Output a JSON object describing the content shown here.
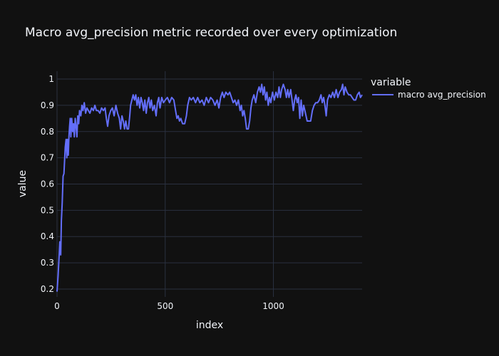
{
  "chart_data": {
    "type": "line",
    "title": "Macro avg_precision metric recorded over every optimization",
    "xlabel": "index",
    "ylabel": "value",
    "xlim": [
      0,
      1410
    ],
    "ylim": [
      0.17,
      1.03
    ],
    "x_ticks": [
      0,
      500,
      1000
    ],
    "y_ticks": [
      0.2,
      0.3,
      0.4,
      0.5,
      0.6,
      0.7,
      0.8,
      0.9,
      1
    ],
    "grid": true,
    "legend": {
      "title": "variable",
      "placement": "top-right-outside"
    },
    "colors": {
      "background": "#111111",
      "grid": "#2a3140",
      "text": "#f2f5fa",
      "line": "#636efa"
    },
    "series": [
      {
        "name": "macro avg_precision",
        "points": [
          [
            0,
            0.19
          ],
          [
            5,
            0.25
          ],
          [
            10,
            0.33
          ],
          [
            13,
            0.38
          ],
          [
            17,
            0.33
          ],
          [
            20,
            0.46
          ],
          [
            24,
            0.53
          ],
          [
            28,
            0.63
          ],
          [
            32,
            0.64
          ],
          [
            35,
            0.69
          ],
          [
            38,
            0.74
          ],
          [
            42,
            0.77
          ],
          [
            45,
            0.7
          ],
          [
            48,
            0.77
          ],
          [
            52,
            0.71
          ],
          [
            55,
            0.78
          ],
          [
            58,
            0.82
          ],
          [
            61,
            0.85
          ],
          [
            64,
            0.78
          ],
          [
            68,
            0.85
          ],
          [
            72,
            0.8
          ],
          [
            76,
            0.83
          ],
          [
            80,
            0.78
          ],
          [
            84,
            0.85
          ],
          [
            88,
            0.82
          ],
          [
            92,
            0.78
          ],
          [
            96,
            0.86
          ],
          [
            100,
            0.83
          ],
          [
            104,
            0.88
          ],
          [
            110,
            0.86
          ],
          [
            115,
            0.9
          ],
          [
            120,
            0.88
          ],
          [
            126,
            0.91
          ],
          [
            132,
            0.87
          ],
          [
            138,
            0.89
          ],
          [
            145,
            0.88
          ],
          [
            152,
            0.87
          ],
          [
            160,
            0.89
          ],
          [
            168,
            0.88
          ],
          [
            175,
            0.9
          ],
          [
            182,
            0.88
          ],
          [
            190,
            0.88
          ],
          [
            198,
            0.87
          ],
          [
            206,
            0.89
          ],
          [
            214,
            0.88
          ],
          [
            222,
            0.89
          ],
          [
            228,
            0.85
          ],
          [
            234,
            0.82
          ],
          [
            240,
            0.86
          ],
          [
            248,
            0.88
          ],
          [
            256,
            0.89
          ],
          [
            264,
            0.86
          ],
          [
            272,
            0.9
          ],
          [
            280,
            0.87
          ],
          [
            288,
            0.85
          ],
          [
            294,
            0.81
          ],
          [
            300,
            0.86
          ],
          [
            306,
            0.84
          ],
          [
            312,
            0.81
          ],
          [
            318,
            0.84
          ],
          [
            324,
            0.81
          ],
          [
            330,
            0.81
          ],
          [
            336,
            0.86
          ],
          [
            340,
            0.9
          ],
          [
            346,
            0.92
          ],
          [
            352,
            0.94
          ],
          [
            358,
            0.92
          ],
          [
            364,
            0.94
          ],
          [
            370,
            0.9
          ],
          [
            376,
            0.93
          ],
          [
            382,
            0.89
          ],
          [
            388,
            0.93
          ],
          [
            394,
            0.91
          ],
          [
            400,
            0.88
          ],
          [
            406,
            0.92
          ],
          [
            412,
            0.87
          ],
          [
            418,
            0.91
          ],
          [
            424,
            0.93
          ],
          [
            430,
            0.89
          ],
          [
            436,
            0.92
          ],
          [
            442,
            0.88
          ],
          [
            450,
            0.9
          ],
          [
            458,
            0.86
          ],
          [
            464,
            0.91
          ],
          [
            470,
            0.93
          ],
          [
            476,
            0.89
          ],
          [
            484,
            0.93
          ],
          [
            492,
            0.91
          ],
          [
            500,
            0.92
          ],
          [
            510,
            0.93
          ],
          [
            520,
            0.91
          ],
          [
            530,
            0.93
          ],
          [
            540,
            0.92
          ],
          [
            548,
            0.88
          ],
          [
            554,
            0.85
          ],
          [
            560,
            0.86
          ],
          [
            566,
            0.84
          ],
          [
            572,
            0.85
          ],
          [
            580,
            0.83
          ],
          [
            590,
            0.83
          ],
          [
            598,
            0.86
          ],
          [
            604,
            0.9
          ],
          [
            612,
            0.93
          ],
          [
            620,
            0.92
          ],
          [
            630,
            0.93
          ],
          [
            640,
            0.91
          ],
          [
            650,
            0.93
          ],
          [
            660,
            0.91
          ],
          [
            670,
            0.92
          ],
          [
            680,
            0.9
          ],
          [
            690,
            0.93
          ],
          [
            700,
            0.91
          ],
          [
            710,
            0.93
          ],
          [
            720,
            0.92
          ],
          [
            730,
            0.9
          ],
          [
            740,
            0.92
          ],
          [
            748,
            0.89
          ],
          [
            756,
            0.93
          ],
          [
            764,
            0.95
          ],
          [
            772,
            0.93
          ],
          [
            780,
            0.95
          ],
          [
            790,
            0.94
          ],
          [
            798,
            0.95
          ],
          [
            806,
            0.93
          ],
          [
            814,
            0.91
          ],
          [
            822,
            0.92
          ],
          [
            830,
            0.9
          ],
          [
            838,
            0.92
          ],
          [
            846,
            0.88
          ],
          [
            852,
            0.9
          ],
          [
            858,
            0.86
          ],
          [
            864,
            0.88
          ],
          [
            870,
            0.85
          ],
          [
            876,
            0.81
          ],
          [
            884,
            0.81
          ],
          [
            890,
            0.84
          ],
          [
            896,
            0.89
          ],
          [
            902,
            0.92
          ],
          [
            910,
            0.94
          ],
          [
            918,
            0.91
          ],
          [
            926,
            0.95
          ],
          [
            934,
            0.97
          ],
          [
            940,
            0.95
          ],
          [
            946,
            0.98
          ],
          [
            952,
            0.94
          ],
          [
            958,
            0.97
          ],
          [
            964,
            0.92
          ],
          [
            970,
            0.95
          ],
          [
            976,
            0.9
          ],
          [
            982,
            0.93
          ],
          [
            988,
            0.91
          ],
          [
            996,
            0.95
          ],
          [
            1004,
            0.92
          ],
          [
            1012,
            0.95
          ],
          [
            1020,
            0.93
          ],
          [
            1026,
            0.97
          ],
          [
            1032,
            0.93
          ],
          [
            1038,
            0.96
          ],
          [
            1046,
            0.98
          ],
          [
            1054,
            0.96
          ],
          [
            1060,
            0.93
          ],
          [
            1066,
            0.96
          ],
          [
            1072,
            0.93
          ],
          [
            1080,
            0.96
          ],
          [
            1086,
            0.92
          ],
          [
            1092,
            0.88
          ],
          [
            1098,
            0.92
          ],
          [
            1104,
            0.94
          ],
          [
            1110,
            0.91
          ],
          [
            1116,
            0.93
          ],
          [
            1122,
            0.85
          ],
          [
            1128,
            0.92
          ],
          [
            1134,
            0.86
          ],
          [
            1140,
            0.9
          ],
          [
            1148,
            0.87
          ],
          [
            1156,
            0.84
          ],
          [
            1164,
            0.84
          ],
          [
            1172,
            0.84
          ],
          [
            1180,
            0.88
          ],
          [
            1188,
            0.9
          ],
          [
            1196,
            0.91
          ],
          [
            1204,
            0.91
          ],
          [
            1212,
            0.92
          ],
          [
            1220,
            0.94
          ],
          [
            1226,
            0.91
          ],
          [
            1232,
            0.93
          ],
          [
            1238,
            0.9
          ],
          [
            1244,
            0.86
          ],
          [
            1250,
            0.92
          ],
          [
            1258,
            0.94
          ],
          [
            1266,
            0.93
          ],
          [
            1274,
            0.95
          ],
          [
            1282,
            0.93
          ],
          [
            1290,
            0.96
          ],
          [
            1298,
            0.93
          ],
          [
            1306,
            0.95
          ],
          [
            1314,
            0.96
          ],
          [
            1320,
            0.98
          ],
          [
            1326,
            0.94
          ],
          [
            1332,
            0.97
          ],
          [
            1340,
            0.95
          ],
          [
            1348,
            0.94
          ],
          [
            1356,
            0.94
          ],
          [
            1364,
            0.93
          ],
          [
            1372,
            0.92
          ],
          [
            1380,
            0.92
          ],
          [
            1388,
            0.94
          ],
          [
            1396,
            0.95
          ],
          [
            1402,
            0.93
          ],
          [
            1410,
            0.94
          ]
        ]
      }
    ]
  }
}
